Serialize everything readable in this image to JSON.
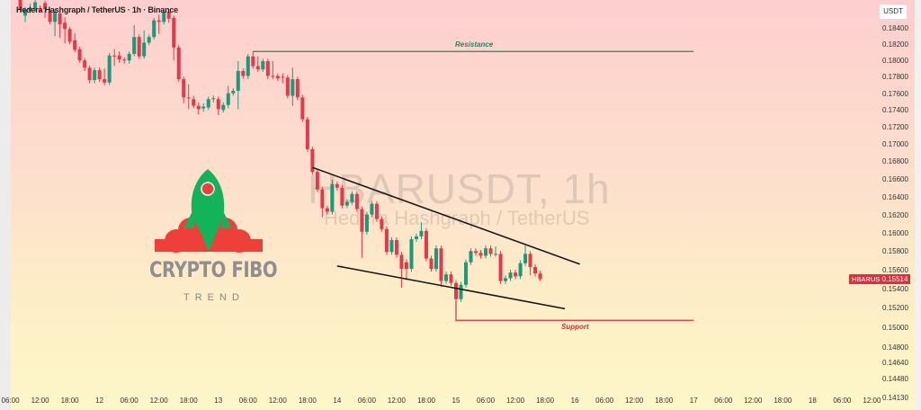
{
  "header": {
    "legend": "Hedera Hashgraph / TetherUS · 1h · Binance",
    "currency": "USDT"
  },
  "watermark": {
    "symbol": "HBARUSDT, 1h",
    "name": "Hedera Hashgraph / TetherUS"
  },
  "logo": {
    "title": "CRYPTO FIBO",
    "subtitle": "TREND"
  },
  "last_price": {
    "symbol": "HBARUSDT",
    "value": "0.15514",
    "color": "#d9313f"
  },
  "colors": {
    "up": "#1a9a78",
    "down": "#e23a49",
    "resistance": "#1f8a64",
    "support": "#d9313f",
    "trendline": "#111111"
  },
  "chart_data": {
    "type": "candlestick",
    "title": "Hedera Hashgraph / TetherUS · 1h · Binance",
    "y_scale": "log",
    "y_ticks": [
      "0.18400",
      "0.18200",
      "0.18000",
      "0.17800",
      "0.17600",
      "0.17400",
      "0.17200",
      "0.17000",
      "0.16800",
      "0.16600",
      "0.16400",
      "0.16200",
      "0.16000",
      "0.15800",
      "0.15600",
      "0.15400",
      "0.15200",
      "0.15000",
      "0.14800",
      "0.14640",
      "0.14480",
      "0.14130"
    ],
    "x_ticks": [
      "06:00",
      "12:00",
      "18:00",
      "12",
      "06:00",
      "12:00",
      "18:00",
      "13",
      "06:00",
      "12:00",
      "18:00",
      "14",
      "06:00",
      "12:00",
      "18:00",
      "15",
      "06:00",
      "12:00",
      "18:00",
      "16",
      "06:00",
      "12:00",
      "18:00",
      "17",
      "06:00",
      "12:00",
      "18:00",
      "18",
      "06:00",
      "12:00"
    ],
    "candle_fields": [
      "time",
      "open",
      "high",
      "low",
      "close"
    ],
    "candles": [
      [
        "11 08:00",
        0.1877,
        0.188,
        0.1862,
        0.1865
      ],
      [
        "11 09:00",
        0.1857,
        0.1868,
        0.1849,
        0.1865
      ],
      [
        "11 10:00",
        0.1863,
        0.1872,
        0.186,
        0.1867
      ],
      [
        "11 11:00",
        0.1865,
        0.1878,
        0.1862,
        0.1874
      ],
      [
        "11 12:00",
        0.1866,
        0.187,
        0.1862,
        0.1865
      ],
      [
        "11 13:00",
        0.1873,
        0.1876,
        0.1854,
        0.1865
      ],
      [
        "11 14:00",
        0.1862,
        0.1866,
        0.1846,
        0.1849
      ],
      [
        "11 15:00",
        0.1849,
        0.1865,
        0.1831,
        0.1862
      ],
      [
        "11 16:00",
        0.186,
        0.1863,
        0.1829,
        0.1846
      ],
      [
        "11 17:00",
        0.1848,
        0.1855,
        0.1822,
        0.184
      ],
      [
        "11 18:00",
        0.184,
        0.1843,
        0.1821,
        0.1824
      ],
      [
        "11 19:00",
        0.1826,
        0.1835,
        0.1811,
        0.1814
      ],
      [
        "11 20:00",
        0.1815,
        0.1818,
        0.1798,
        0.1801
      ],
      [
        "11 21:00",
        0.1801,
        0.1804,
        0.1788,
        0.1792
      ],
      [
        "11 22:00",
        0.1792,
        0.1795,
        0.1773,
        0.1777
      ],
      [
        "11 23:00",
        0.1777,
        0.1792,
        0.1773,
        0.1789
      ],
      [
        "12 00:00",
        0.1789,
        0.1792,
        0.1775,
        0.1778
      ],
      [
        "12 01:00",
        0.1778,
        0.1791,
        0.1771,
        0.1774
      ],
      [
        "12 02:00",
        0.1774,
        0.181,
        0.1771,
        0.1807
      ],
      [
        "12 03:00",
        0.1807,
        0.1815,
        0.1794,
        0.1806
      ],
      [
        "12 04:00",
        0.1807,
        0.1812,
        0.1798,
        0.1802
      ],
      [
        "12 05:00",
        0.1802,
        0.1805,
        0.1797,
        0.1801
      ],
      [
        "12 06:00",
        0.1801,
        0.1812,
        0.1797,
        0.1809
      ],
      [
        "12 07:00",
        0.1809,
        0.1845,
        0.1806,
        0.183
      ],
      [
        "12 08:00",
        0.183,
        0.1833,
        0.1803,
        0.1806
      ],
      [
        "12 09:00",
        0.1806,
        0.1838,
        0.1803,
        0.1823
      ],
      [
        "12 10:00",
        0.1823,
        0.1833,
        0.182,
        0.183
      ],
      [
        "12 11:00",
        0.183,
        0.1854,
        0.1827,
        0.1851
      ],
      [
        "12 12:00",
        0.1851,
        0.1858,
        0.1834,
        0.1849
      ],
      [
        "12 13:00",
        0.1849,
        0.1866,
        0.1846,
        0.1862
      ],
      [
        "12 14:00",
        0.1862,
        0.1865,
        0.1848,
        0.1853
      ],
      [
        "12 15:00",
        0.1854,
        0.1857,
        0.1801,
        0.1817
      ],
      [
        "12 16:00",
        0.1817,
        0.182,
        0.1775,
        0.1778
      ],
      [
        "12 17:00",
        0.1778,
        0.1781,
        0.1749,
        0.1756
      ],
      [
        "12 18:00",
        0.1756,
        0.1772,
        0.1742,
        0.1755
      ],
      [
        "12 19:00",
        0.1754,
        0.1758,
        0.1743,
        0.1746
      ],
      [
        "12 20:00",
        0.1746,
        0.175,
        0.1736,
        0.1742
      ],
      [
        "12 21:00",
        0.1743,
        0.1749,
        0.1739,
        0.1745
      ],
      [
        "12 22:00",
        0.1744,
        0.1757,
        0.1741,
        0.1754
      ],
      [
        "12 23:00",
        0.1754,
        0.1758,
        0.175,
        0.1755
      ],
      [
        "13 00:00",
        0.1754,
        0.1757,
        0.1735,
        0.1742
      ],
      [
        "13 01:00",
        0.1741,
        0.175,
        0.1738,
        0.1747
      ],
      [
        "13 02:00",
        0.1747,
        0.177,
        0.1743,
        0.1761
      ],
      [
        "13 03:00",
        0.1761,
        0.1767,
        0.1758,
        0.1764
      ],
      [
        "13 04:00",
        0.1764,
        0.18,
        0.1742,
        0.1788
      ],
      [
        "13 05:00",
        0.1788,
        0.1791,
        0.1779,
        0.1782
      ],
      [
        "13 06:00",
        0.1782,
        0.1809,
        0.1778,
        0.1806
      ],
      [
        "13 07:00",
        0.1806,
        0.1812,
        0.1791,
        0.1794
      ],
      [
        "13 08:00",
        0.1794,
        0.1806,
        0.1787,
        0.179
      ],
      [
        "13 09:00",
        0.179,
        0.1803,
        0.1787,
        0.18
      ],
      [
        "13 10:00",
        0.18,
        0.1803,
        0.1778,
        0.1782
      ],
      [
        "13 11:00",
        0.1782,
        0.18,
        0.1778,
        0.1781
      ],
      [
        "13 12:00",
        0.1782,
        0.1785,
        0.1776,
        0.1779
      ],
      [
        "13 13:00",
        0.1781,
        0.1785,
        0.1773,
        0.178
      ],
      [
        "13 14:00",
        0.178,
        0.1783,
        0.1755,
        0.1758
      ],
      [
        "13 15:00",
        0.1758,
        0.1792,
        0.1746,
        0.1778
      ],
      [
        "13 16:00",
        0.1778,
        0.1781,
        0.1753,
        0.1756
      ],
      [
        "13 17:00",
        0.1756,
        0.1759,
        0.1727,
        0.173
      ],
      [
        "13 18:00",
        0.173,
        0.1733,
        0.1692,
        0.1695
      ],
      [
        "13 19:00",
        0.1695,
        0.1698,
        0.1666,
        0.1669
      ],
      [
        "13 20:00",
        0.1669,
        0.1672,
        0.1646,
        0.1649
      ],
      [
        "13 21:00",
        0.1649,
        0.1652,
        0.1618,
        0.1628
      ],
      [
        "13 22:00",
        0.1628,
        0.1631,
        0.1621,
        0.1624
      ],
      [
        "13 23:00",
        0.1624,
        0.166,
        0.1621,
        0.1655
      ],
      [
        "14 00:00",
        0.1655,
        0.1658,
        0.1648,
        0.1651
      ],
      [
        "14 01:00",
        0.1651,
        0.1654,
        0.1628,
        0.1631
      ],
      [
        "14 02:00",
        0.1631,
        0.1638,
        0.1628,
        0.1635
      ],
      [
        "14 03:00",
        0.1635,
        0.1647,
        0.1632,
        0.1644
      ],
      [
        "14 04:00",
        0.1644,
        0.1647,
        0.1624,
        0.1627
      ],
      [
        "14 05:00",
        0.1627,
        0.163,
        0.1574,
        0.1602
      ],
      [
        "14 06:00",
        0.1602,
        0.1624,
        0.1599,
        0.1621
      ],
      [
        "14 07:00",
        0.1621,
        0.1636,
        0.1618,
        0.1633
      ],
      [
        "14 08:00",
        0.1633,
        0.1636,
        0.1613,
        0.1616
      ],
      [
        "14 09:00",
        0.1616,
        0.1619,
        0.1602,
        0.1605
      ],
      [
        "14 10:00",
        0.1605,
        0.1608,
        0.1577,
        0.158
      ],
      [
        "14 11:00",
        0.158,
        0.1596,
        0.1577,
        0.1593
      ],
      [
        "14 12:00",
        0.1593,
        0.1596,
        0.1574,
        0.1577
      ],
      [
        "14 13:00",
        0.1577,
        0.158,
        0.1542,
        0.1562
      ],
      [
        "14 14:00",
        0.1569,
        0.1572,
        0.155,
        0.1562
      ],
      [
        "14 15:00",
        0.1562,
        0.1597,
        0.1559,
        0.1594
      ],
      [
        "14 16:00",
        0.1594,
        0.16,
        0.1591,
        0.1597
      ],
      [
        "14 17:00",
        0.1597,
        0.1612,
        0.1594,
        0.1603
      ],
      [
        "14 18:00",
        0.1603,
        0.1606,
        0.157,
        0.1573
      ],
      [
        "14 19:00",
        0.1573,
        0.1576,
        0.1559,
        0.1562
      ],
      [
        "14 20:00",
        0.1562,
        0.1587,
        0.1559,
        0.1584
      ],
      [
        "14 21:00",
        0.1584,
        0.1587,
        0.1543,
        0.1549
      ],
      [
        "14 22:00",
        0.1549,
        0.1559,
        0.1546,
        0.1556
      ],
      [
        "14 23:00",
        0.1556,
        0.1559,
        0.1544,
        0.1547
      ],
      [
        "15 00:00",
        0.1547,
        0.155,
        0.1507,
        0.153
      ],
      [
        "15 01:00",
        0.153,
        0.1548,
        0.1527,
        0.1545
      ],
      [
        "15 02:00",
        0.1545,
        0.1572,
        0.1542,
        0.1569
      ],
      [
        "15 03:00",
        0.1569,
        0.1584,
        0.1566,
        0.1581
      ],
      [
        "15 04:00",
        0.1581,
        0.1584,
        0.1576,
        0.1579
      ],
      [
        "15 05:00",
        0.1579,
        0.1582,
        0.1573,
        0.1576
      ],
      [
        "15 06:00",
        0.1576,
        0.1587,
        0.1573,
        0.1584
      ],
      [
        "15 07:00",
        0.1584,
        0.1587,
        0.1575,
        0.1578
      ],
      [
        "15 08:00",
        0.1578,
        0.1586,
        0.1575,
        0.1578
      ],
      [
        "15 09:00",
        0.1578,
        0.1581,
        0.1546,
        0.1549
      ],
      [
        "15 10:00",
        0.1549,
        0.1555,
        0.1546,
        0.1552
      ],
      [
        "15 11:00",
        0.1552,
        0.1561,
        0.1549,
        0.1558
      ],
      [
        "15 12:00",
        0.1558,
        0.1561,
        0.1551,
        0.1554
      ],
      [
        "15 13:00",
        0.1554,
        0.1571,
        0.1551,
        0.1568
      ],
      [
        "15 14:00",
        0.1568,
        0.1587,
        0.1565,
        0.1578
      ],
      [
        "15 15:00",
        0.1578,
        0.1581,
        0.1555,
        0.1564
      ],
      [
        "15 16:00",
        0.1564,
        0.1567,
        0.1554,
        0.1557
      ],
      [
        "15 17:00",
        0.1557,
        0.156,
        0.1549,
        0.1551
      ]
    ],
    "annotations": {
      "resistance": {
        "label": "Resistance",
        "price": 0.1812,
        "from": "13 07:00",
        "to": "17 00:00"
      },
      "support": {
        "label": "Support",
        "price": 0.1508,
        "from": "15 00:00",
        "to": "17 00:00"
      },
      "upper_trendline": {
        "from": [
          "13 19:00",
          0.1674
        ],
        "to": [
          "16 01:00",
          0.1567
        ]
      },
      "lower_trendline": {
        "from": [
          "14 00:00",
          0.1565
        ],
        "to": [
          "15 22:00",
          0.152
        ]
      }
    }
  }
}
